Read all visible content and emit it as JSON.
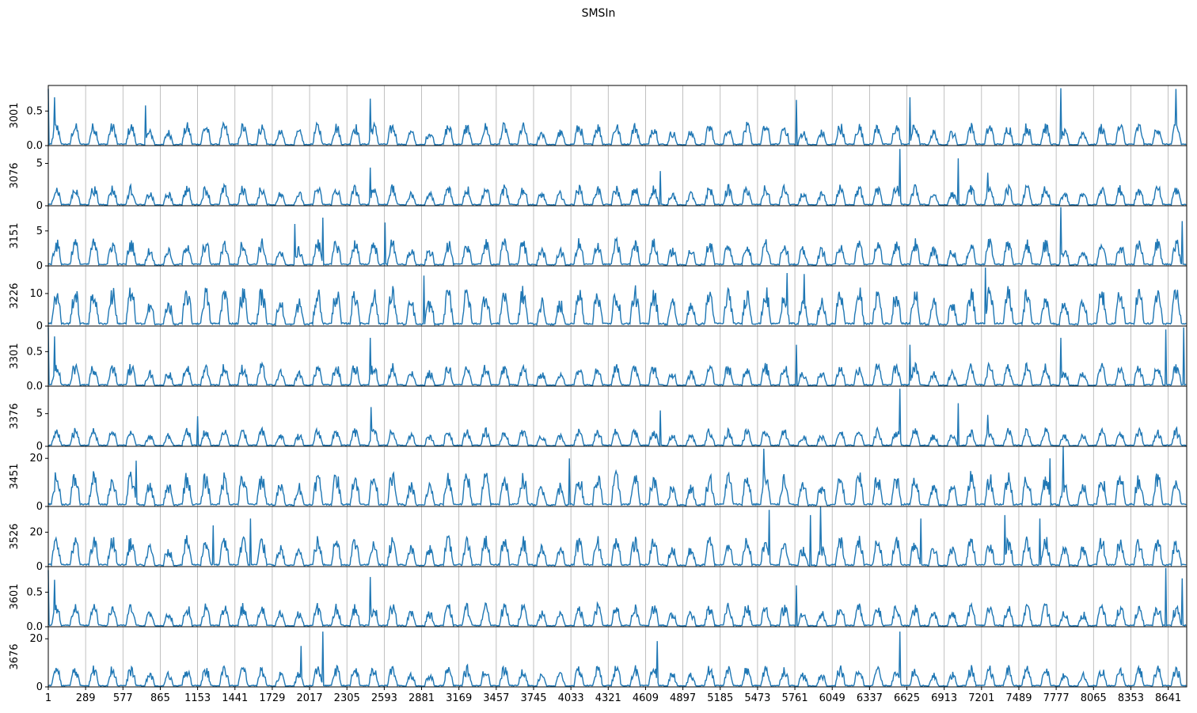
{
  "chart_data": {
    "type": "line",
    "title": "SMSIn",
    "xlabel": "",
    "x_range": [
      1,
      8784
    ],
    "x_ticks": [
      "1",
      "289",
      "577",
      "865",
      "1153",
      "1441",
      "1729",
      "2017",
      "2305",
      "2593",
      "2881",
      "3169",
      "3457",
      "3745",
      "4033",
      "4321",
      "4609",
      "4897",
      "5185",
      "5473",
      "5761",
      "6049",
      "6337",
      "6625",
      "6913",
      "7201",
      "7489",
      "7777",
      "8065",
      "8353",
      "8641"
    ],
    "grid": "x",
    "line_color": "#1f77b4",
    "panels": [
      {
        "ylabel": "3001",
        "ylim": [
          0,
          0.87
        ],
        "yticks": [
          "0.0",
          "0.5"
        ],
        "daily_peak_typical": 0.3,
        "spikes": [
          {
            "x": 1,
            "y": 0.82
          },
          {
            "x": 50,
            "y": 0.7
          },
          {
            "x": 750,
            "y": 0.58
          },
          {
            "x": 2485,
            "y": 0.68
          },
          {
            "x": 5770,
            "y": 0.66
          },
          {
            "x": 6650,
            "y": 0.7
          },
          {
            "x": 7810,
            "y": 0.83
          },
          {
            "x": 8700,
            "y": 0.82
          }
        ]
      },
      {
        "ylabel": "3076",
        "ylim": [
          0,
          7.1
        ],
        "yticks": [
          "0",
          "5"
        ],
        "daily_peak_typical": 2.2,
        "spikes": [
          {
            "x": 2485,
            "y": 4.5
          },
          {
            "x": 4720,
            "y": 4.1
          },
          {
            "x": 6570,
            "y": 6.7
          },
          {
            "x": 7020,
            "y": 5.6
          },
          {
            "x": 7250,
            "y": 3.9
          }
        ]
      },
      {
        "ylabel": "3151",
        "ylim": [
          0,
          8.6
        ],
        "yticks": [
          "0",
          "5"
        ],
        "daily_peak_typical": 3.5,
        "spikes": [
          {
            "x": 1900,
            "y": 6.0
          },
          {
            "x": 2120,
            "y": 6.9
          },
          {
            "x": 2600,
            "y": 6.2
          },
          {
            "x": 7810,
            "y": 8.4
          },
          {
            "x": 8750,
            "y": 6.4
          }
        ]
      },
      {
        "ylabel": "3226",
        "ylim": [
          0,
          18.5
        ],
        "yticks": [
          "0",
          "10"
        ],
        "daily_peak_typical": 11,
        "spikes": [
          {
            "x": 2900,
            "y": 15.5
          },
          {
            "x": 5700,
            "y": 16.3
          },
          {
            "x": 5830,
            "y": 16
          },
          {
            "x": 7230,
            "y": 18
          }
        ]
      },
      {
        "ylabel": "3301",
        "ylim": [
          0,
          0.87
        ],
        "yticks": [
          "0.0",
          "0.5"
        ],
        "daily_peak_typical": 0.3,
        "spikes": [
          {
            "x": 1,
            "y": 0.85
          },
          {
            "x": 50,
            "y": 0.72
          },
          {
            "x": 2485,
            "y": 0.7
          },
          {
            "x": 5770,
            "y": 0.6
          },
          {
            "x": 6650,
            "y": 0.6
          },
          {
            "x": 7810,
            "y": 0.7
          },
          {
            "x": 8620,
            "y": 0.82
          },
          {
            "x": 8760,
            "y": 0.85
          }
        ]
      },
      {
        "ylabel": "3376",
        "ylim": [
          0,
          9.2
        ],
        "yticks": [
          "0",
          "5"
        ],
        "daily_peak_typical": 2.5,
        "spikes": [
          {
            "x": 1150,
            "y": 4.6
          },
          {
            "x": 2490,
            "y": 6.0
          },
          {
            "x": 4720,
            "y": 5.5
          },
          {
            "x": 6570,
            "y": 8.8
          },
          {
            "x": 7020,
            "y": 6.6
          },
          {
            "x": 7250,
            "y": 4.8
          }
        ]
      },
      {
        "ylabel": "3451",
        "ylim": [
          0,
          25
        ],
        "yticks": [
          "0",
          "20"
        ],
        "daily_peak_typical": 13,
        "spikes": [
          {
            "x": 680,
            "y": 19
          },
          {
            "x": 4020,
            "y": 20
          },
          {
            "x": 5520,
            "y": 24
          },
          {
            "x": 7730,
            "y": 20
          },
          {
            "x": 7830,
            "y": 25
          }
        ]
      },
      {
        "ylabel": "3526",
        "ylim": [
          0,
          35
        ],
        "yticks": [
          "0",
          "20"
        ],
        "daily_peak_typical": 16,
        "spikes": [
          {
            "x": 1270,
            "y": 24
          },
          {
            "x": 1560,
            "y": 28
          },
          {
            "x": 5560,
            "y": 33
          },
          {
            "x": 5880,
            "y": 30
          },
          {
            "x": 5960,
            "y": 35
          },
          {
            "x": 6730,
            "y": 28
          },
          {
            "x": 7380,
            "y": 30
          },
          {
            "x": 7650,
            "y": 28
          }
        ]
      },
      {
        "ylabel": "3601",
        "ylim": [
          0,
          0.87
        ],
        "yticks": [
          "0.0",
          "0.5"
        ],
        "daily_peak_typical": 0.3,
        "spikes": [
          {
            "x": 1,
            "y": 0.82
          },
          {
            "x": 50,
            "y": 0.68
          },
          {
            "x": 2485,
            "y": 0.72
          },
          {
            "x": 5770,
            "y": 0.6
          },
          {
            "x": 8620,
            "y": 0.85
          },
          {
            "x": 8750,
            "y": 0.7
          }
        ]
      },
      {
        "ylabel": "3676",
        "ylim": [
          0,
          25
        ],
        "yticks": [
          "0",
          "20"
        ],
        "daily_peak_typical": 8,
        "spikes": [
          {
            "x": 1950,
            "y": 17
          },
          {
            "x": 2120,
            "y": 23
          },
          {
            "x": 4700,
            "y": 19
          },
          {
            "x": 6570,
            "y": 23
          }
        ]
      }
    ]
  }
}
